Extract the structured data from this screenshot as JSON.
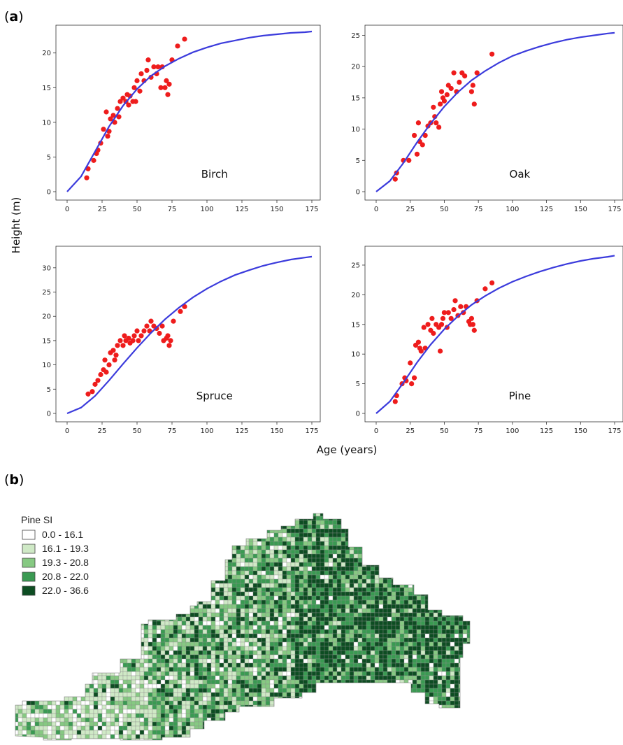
{
  "figure": {
    "panel_a_label": "a",
    "panel_b_label": "b",
    "shared_ylabel": "Height (m)",
    "shared_xlabel": "Age (years)"
  },
  "colors": {
    "curve": "#3b3bdc",
    "points": "#ee1c1c",
    "map_classes": [
      "#ffffff",
      "#cfe9c6",
      "#86c982",
      "#3a9a52",
      "#0d4d22"
    ]
  },
  "chart_data": [
    {
      "type": "scatter",
      "panel": "a",
      "species": "Birch",
      "xlim": [
        0,
        175
      ],
      "ylim": [
        0,
        23
      ],
      "xticks": [
        0,
        25,
        50,
        75,
        100,
        125,
        150,
        175
      ],
      "yticks": [
        0,
        5,
        10,
        15,
        20
      ],
      "curve": {
        "x": [
          0,
          10,
          20,
          30,
          40,
          50,
          60,
          70,
          80,
          90,
          100,
          110,
          120,
          130,
          140,
          150,
          160,
          170,
          175
        ],
        "y": [
          0,
          2.2,
          5.8,
          9.4,
          12.4,
          14.8,
          16.7,
          18.1,
          19.2,
          20.1,
          20.8,
          21.4,
          21.8,
          22.2,
          22.5,
          22.7,
          22.9,
          23.0,
          23.1
        ]
      },
      "points": [
        [
          14,
          2
        ],
        [
          15,
          3.3
        ],
        [
          19,
          4.5
        ],
        [
          21,
          5.5
        ],
        [
          22,
          6
        ],
        [
          24,
          7
        ],
        [
          26,
          9
        ],
        [
          28,
          11.5
        ],
        [
          29,
          8
        ],
        [
          30,
          8.7
        ],
        [
          31,
          10.5
        ],
        [
          33,
          11
        ],
        [
          34,
          10
        ],
        [
          36,
          12
        ],
        [
          37,
          10.8
        ],
        [
          38,
          13
        ],
        [
          40,
          13.5
        ],
        [
          42,
          13
        ],
        [
          43,
          14
        ],
        [
          44,
          12.5
        ],
        [
          45,
          13.8
        ],
        [
          47,
          13
        ],
        [
          48,
          15
        ],
        [
          49,
          13
        ],
        [
          50,
          16
        ],
        [
          52,
          14.5
        ],
        [
          53,
          17
        ],
        [
          55,
          16
        ],
        [
          57,
          17.5
        ],
        [
          58,
          19
        ],
        [
          60,
          16.5
        ],
        [
          62,
          18
        ],
        [
          64,
          17
        ],
        [
          65,
          18
        ],
        [
          67,
          15
        ],
        [
          68,
          18
        ],
        [
          70,
          15
        ],
        [
          71,
          16
        ],
        [
          72,
          14
        ],
        [
          73,
          15.5
        ],
        [
          75,
          19
        ],
        [
          79,
          21
        ],
        [
          84,
          22
        ]
      ]
    },
    {
      "type": "scatter",
      "panel": "a",
      "species": "Oak",
      "xlim": [
        0,
        175
      ],
      "ylim": [
        0,
        25.5
      ],
      "xticks": [
        0,
        25,
        50,
        75,
        100,
        125,
        150,
        175
      ],
      "yticks": [
        0,
        5,
        10,
        15,
        20,
        25
      ],
      "curve": {
        "x": [
          0,
          10,
          20,
          30,
          40,
          50,
          60,
          70,
          80,
          90,
          100,
          110,
          120,
          130,
          140,
          150,
          160,
          170,
          175
        ],
        "y": [
          0,
          1.7,
          4.6,
          7.9,
          10.9,
          13.6,
          15.9,
          17.8,
          19.3,
          20.6,
          21.7,
          22.5,
          23.2,
          23.8,
          24.3,
          24.7,
          25.0,
          25.3,
          25.4
        ]
      },
      "points": [
        [
          14,
          2
        ],
        [
          15,
          3
        ],
        [
          20,
          5
        ],
        [
          24,
          5
        ],
        [
          28,
          9
        ],
        [
          30,
          6
        ],
        [
          31,
          11
        ],
        [
          32,
          8
        ],
        [
          34,
          7.5
        ],
        [
          36,
          9
        ],
        [
          38,
          10.5
        ],
        [
          40,
          11
        ],
        [
          42,
          13.5
        ],
        [
          43,
          12
        ],
        [
          44,
          11
        ],
        [
          46,
          10.3
        ],
        [
          47,
          14
        ],
        [
          48,
          16
        ],
        [
          49,
          15
        ],
        [
          50,
          14.5
        ],
        [
          52,
          15.5
        ],
        [
          53,
          17
        ],
        [
          55,
          16.5
        ],
        [
          57,
          19
        ],
        [
          59,
          16
        ],
        [
          61,
          17.5
        ],
        [
          63,
          19
        ],
        [
          65,
          18.5
        ],
        [
          70,
          16
        ],
        [
          71,
          17
        ],
        [
          72,
          14
        ],
        [
          74,
          19
        ],
        [
          85,
          22
        ]
      ]
    },
    {
      "type": "scatter",
      "panel": "a",
      "species": "Spruce",
      "xlim": [
        0,
        175
      ],
      "ylim": [
        0,
        33
      ],
      "xticks": [
        0,
        25,
        50,
        75,
        100,
        125,
        150,
        175
      ],
      "yticks": [
        0,
        5,
        10,
        15,
        20,
        25,
        30
      ],
      "curve": {
        "x": [
          0,
          10,
          20,
          30,
          40,
          50,
          60,
          70,
          80,
          90,
          100,
          110,
          120,
          130,
          140,
          150,
          160,
          170,
          175
        ],
        "y": [
          0,
          1.2,
          3.6,
          6.8,
          10.2,
          13.5,
          16.6,
          19.4,
          21.8,
          23.9,
          25.7,
          27.2,
          28.5,
          29.5,
          30.4,
          31.1,
          31.7,
          32.1,
          32.3
        ]
      },
      "points": [
        [
          15,
          4
        ],
        [
          18,
          4.5
        ],
        [
          20,
          6
        ],
        [
          22,
          6.8
        ],
        [
          24,
          8
        ],
        [
          26,
          9
        ],
        [
          27,
          11
        ],
        [
          28,
          8.5
        ],
        [
          30,
          10
        ],
        [
          31,
          12.5
        ],
        [
          33,
          13
        ],
        [
          34,
          11
        ],
        [
          35,
          12
        ],
        [
          36,
          14
        ],
        [
          38,
          15
        ],
        [
          40,
          14
        ],
        [
          41,
          16
        ],
        [
          42,
          15
        ],
        [
          44,
          15.5
        ],
        [
          45,
          14.5
        ],
        [
          47,
          15
        ],
        [
          48,
          16
        ],
        [
          50,
          17
        ],
        [
          51,
          15
        ],
        [
          53,
          16
        ],
        [
          55,
          17
        ],
        [
          57,
          18
        ],
        [
          59,
          17
        ],
        [
          60,
          19
        ],
        [
          62,
          18
        ],
        [
          64,
          17.5
        ],
        [
          66,
          16.5
        ],
        [
          68,
          18
        ],
        [
          69,
          15
        ],
        [
          71,
          15.5
        ],
        [
          72,
          16
        ],
        [
          73,
          14
        ],
        [
          74,
          15
        ],
        [
          76,
          19
        ],
        [
          81,
          21
        ],
        [
          84,
          22
        ]
      ]
    },
    {
      "type": "scatter",
      "panel": "a",
      "species": "Pine",
      "xlim": [
        0,
        175
      ],
      "ylim": [
        0,
        27
      ],
      "xticks": [
        0,
        25,
        50,
        75,
        100,
        125,
        150,
        175
      ],
      "yticks": [
        0,
        5,
        10,
        15,
        20,
        25
      ],
      "curve": {
        "x": [
          0,
          10,
          20,
          30,
          40,
          50,
          60,
          70,
          80,
          90,
          100,
          110,
          120,
          130,
          140,
          150,
          160,
          170,
          175
        ],
        "y": [
          0,
          2.0,
          5.2,
          8.6,
          11.6,
          14.2,
          16.4,
          18.3,
          19.8,
          21.1,
          22.2,
          23.1,
          23.9,
          24.6,
          25.2,
          25.7,
          26.1,
          26.4,
          26.6
        ]
      },
      "points": [
        [
          14,
          2
        ],
        [
          15,
          3
        ],
        [
          19,
          5
        ],
        [
          21,
          6
        ],
        [
          22,
          5.5
        ],
        [
          25,
          8.5
        ],
        [
          26,
          5
        ],
        [
          28,
          6
        ],
        [
          29,
          11.5
        ],
        [
          31,
          12
        ],
        [
          32,
          11
        ],
        [
          33,
          10.5
        ],
        [
          35,
          14.5
        ],
        [
          36,
          11
        ],
        [
          38,
          15
        ],
        [
          40,
          14
        ],
        [
          41,
          16
        ],
        [
          42,
          13.5
        ],
        [
          44,
          15
        ],
        [
          46,
          14.5
        ],
        [
          47,
          10.5
        ],
        [
          48,
          15
        ],
        [
          49,
          16
        ],
        [
          50,
          17
        ],
        [
          52,
          14.5
        ],
        [
          53,
          17
        ],
        [
          55,
          16
        ],
        [
          57,
          17.5
        ],
        [
          58,
          19
        ],
        [
          60,
          16.5
        ],
        [
          62,
          18
        ],
        [
          64,
          17
        ],
        [
          66,
          18
        ],
        [
          68,
          15.5
        ],
        [
          69,
          15
        ],
        [
          70,
          16
        ],
        [
          71,
          15
        ],
        [
          72,
          14
        ],
        [
          74,
          19
        ],
        [
          80,
          21
        ],
        [
          85,
          22
        ]
      ]
    },
    {
      "type": "heatmap",
      "panel": "b",
      "title": "Pine SI",
      "classes": [
        {
          "label": "0.0 - 16.1",
          "color": "#ffffff"
        },
        {
          "label": "16.1 - 19.3",
          "color": "#cfe9c6"
        },
        {
          "label": "19.3 - 20.8",
          "color": "#86c982"
        },
        {
          "label": "20.8 - 22.0",
          "color": "#3a9a52"
        },
        {
          "label": "22.0 - 36.6",
          "color": "#0d4d22"
        }
      ]
    }
  ]
}
